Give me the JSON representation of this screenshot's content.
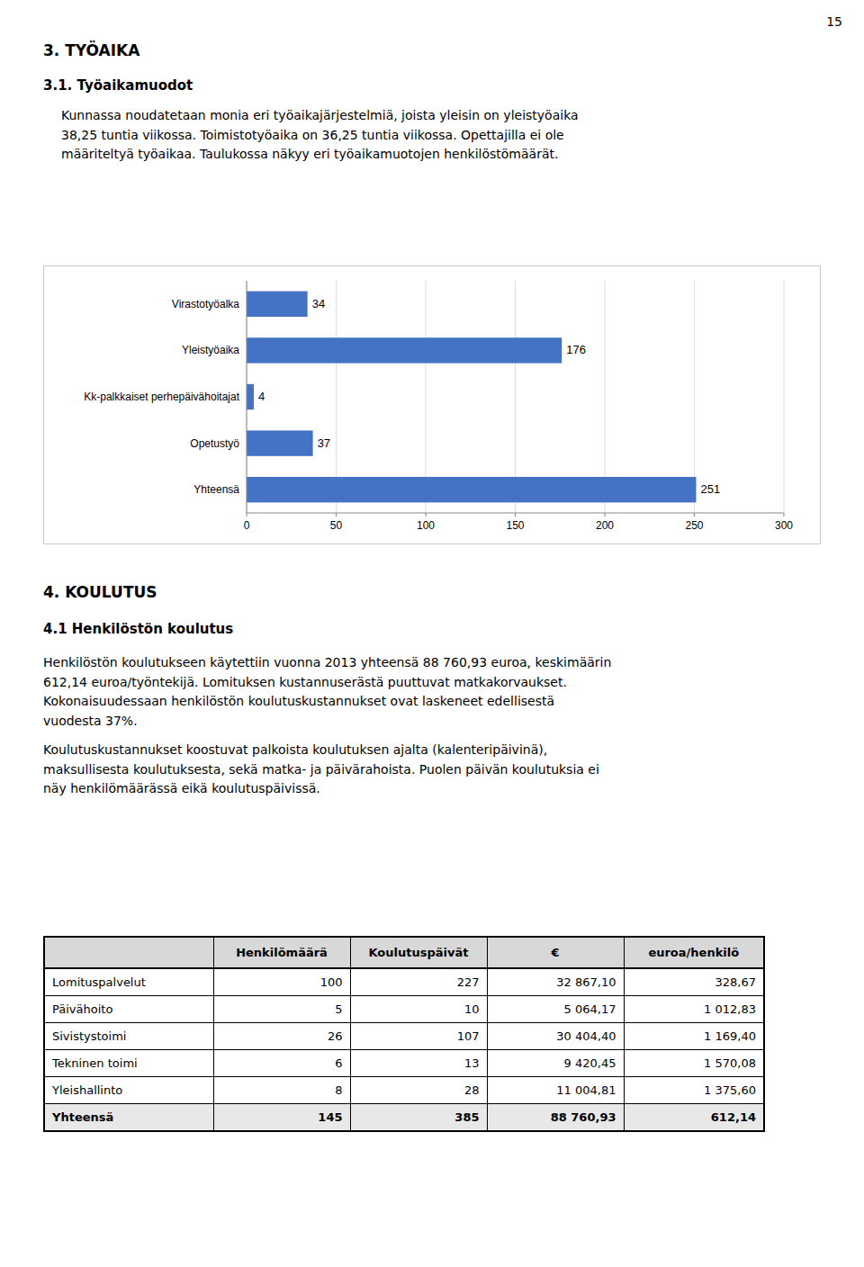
{
  "page_number": "15",
  "section3_title": "3.  TYÖAIKA",
  "section31_title": "3.1.  Työaikamuodot",
  "section31_text": "Kunnassa noudatetaan monia eri työaikajärjestelmiä, joista yleisin on yleistyöaika\n38,25 tuntia viikossa. Toimistotyöaika on 36,25 tuntia viikossa. Opettajilla ei ole\nmääriteltyä työaikaa. Taulukossa näkyy eri työaikamuotojen henkilöstömäärät.",
  "chart_data": {
    "type": "bar",
    "orientation": "horizontal",
    "categories": [
      "Yhteensä",
      "Opetustyö",
      "Kk-palkkaiset perhepäivähoitajat",
      "Yleistyöaika",
      "Virastotyöalka"
    ],
    "values": [
      251,
      37,
      4,
      176,
      34
    ],
    "color": "#4472C4",
    "xlim": [
      0,
      300
    ],
    "xticks": [
      0,
      50,
      100,
      150,
      200,
      250,
      300
    ],
    "grid": true,
    "data_labels": true
  },
  "section4_title": "4.  KOULUTUS",
  "section41_title": "4.1 Henkilöstön koulutus",
  "section41_text1": "Henkilöstön koulutukseen käytettiin vuonna 2013 yhteensä 88 760,93 euroa, keskimäärin\n612,14 euroa/työntekijä. Lomituksen kustannuserästä puuttuvat matkakorvaukset.\nKokonaisuudessaan henkilöstön koulutuskustannukset ovat laskeneet edellisestä\nvuodesta 37%.",
  "section41_text2": "Koulutuskustannukset koostuvat palkoista koulutuksen ajalta (kalenteripäivinä),\nmaksullisesta koulutuksesta, sekä matka- ja päivärahoista. Puolen päivän koulutuksia ei\nnäy henkilömäärässä eikä koulutuspäivissä.",
  "table": {
    "headers": [
      null,
      "Henkilömäärä",
      "Koulutuspäivät",
      "€",
      "euroa/henkilö"
    ],
    "rows": [
      [
        "Lomituspalvelut",
        "100",
        "227",
        "32 867,10",
        "328,67"
      ],
      [
        "Päivähoito",
        "5",
        "10",
        "5 064,17",
        "1 012,83"
      ],
      [
        "Sivistystoimi",
        "26",
        "107",
        "30 404,40",
        "1 169,40"
      ],
      [
        "Tekninen toimi",
        "6",
        "13",
        "9 420,45",
        "1 570,08"
      ],
      [
        "Yleishallinto",
        "8",
        "28",
        "11 004,81",
        "1 375,60"
      ],
      [
        "Yhteensä",
        "145",
        "385",
        "88 760,93",
        "612,14"
      ]
    ]
  },
  "background_color": "#ffffff",
  "text_color": "#000000"
}
